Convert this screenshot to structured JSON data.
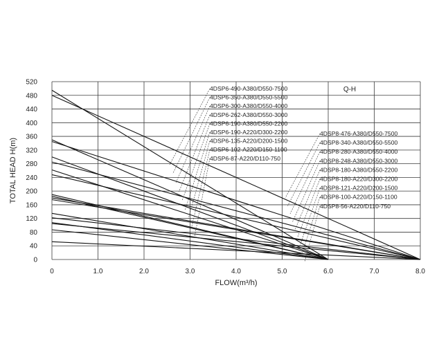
{
  "chart_data": {
    "type": "line",
    "title": "Q-H",
    "xlabel": "FLOW(m³/h)",
    "ylabel": "TOTAL HEAD H(m)",
    "xlim": [
      0,
      8
    ],
    "ylim": [
      0,
      520
    ],
    "x_ticks": [
      "0",
      "1.0",
      "2.0",
      "3.0",
      "4.0",
      "5.0",
      "6.0",
      "7.0",
      "8.0"
    ],
    "y_ticks": [
      "0",
      "40",
      "80",
      "120",
      "160",
      "200",
      "240",
      "280",
      "320",
      "360",
      "400",
      "440",
      "480",
      "520"
    ],
    "grid": true,
    "series": [
      {
        "name": "4DSP6-490-A380/D550-7500",
        "x": [
          0,
          6.0
        ],
        "y": [
          495,
          0
        ]
      },
      {
        "name": "4DSP6-350-A380/D550-5500",
        "x": [
          0,
          6.0
        ],
        "y": [
          350,
          0
        ]
      },
      {
        "name": "4DSP6-300-A380/D550-4000",
        "x": [
          0,
          6.0
        ],
        "y": [
          300,
          0
        ]
      },
      {
        "name": "4DSP6-262-A380/D550-3000",
        "x": [
          0,
          6.0
        ],
        "y": [
          262,
          0
        ]
      },
      {
        "name": "4DSP6-190-A380/D550-2200",
        "x": [
          0,
          6.0
        ],
        "y": [
          190,
          0
        ]
      },
      {
        "name": "4DSP6-190-A220/D300-2200",
        "x": [
          0,
          6.0
        ],
        "y": [
          185,
          0
        ]
      },
      {
        "name": "4DSP6-135-A220/D200-1500",
        "x": [
          0,
          6.0
        ],
        "y": [
          135,
          0
        ]
      },
      {
        "name": "4DSP6-102-A220/D150-1100",
        "x": [
          0,
          6.0
        ],
        "y": [
          108,
          0
        ]
      },
      {
        "name": "4DSP6-87-A220/D110-750",
        "x": [
          0,
          6.0
        ],
        "y": [
          87,
          0
        ]
      },
      {
        "name": "4DSP8-476-A380/D550-7500",
        "x": [
          0,
          8.0
        ],
        "y": [
          480,
          0
        ]
      },
      {
        "name": "4DSP8-340-A380/D550-5500",
        "x": [
          0,
          8.0
        ],
        "y": [
          345,
          0
        ]
      },
      {
        "name": "4DSP8-280-A380/D550-4000",
        "x": [
          0,
          8.0
        ],
        "y": [
          285,
          0
        ]
      },
      {
        "name": "4DSP8-248-A380/D550-3000",
        "x": [
          0,
          8.0
        ],
        "y": [
          248,
          0
        ]
      },
      {
        "name": "4DSP8-180-A380/D550-2200",
        "x": [
          0,
          8.0
        ],
        "y": [
          180,
          0
        ]
      },
      {
        "name": "4DSP8-180-A220/D300-2200",
        "x": [
          0,
          8.0
        ],
        "y": [
          175,
          0
        ]
      },
      {
        "name": "4DSP8-121-A220/D200-1500",
        "x": [
          0,
          8.0
        ],
        "y": [
          122,
          0
        ]
      },
      {
        "name": "4DSP8-100-A220/D150-1100",
        "x": [
          0,
          8.0
        ],
        "y": [
          105,
          0
        ]
      },
      {
        "name": "4DSP8-56-A220/D110-750",
        "x": [
          0,
          8.0
        ],
        "y": [
          52,
          0
        ]
      }
    ]
  }
}
